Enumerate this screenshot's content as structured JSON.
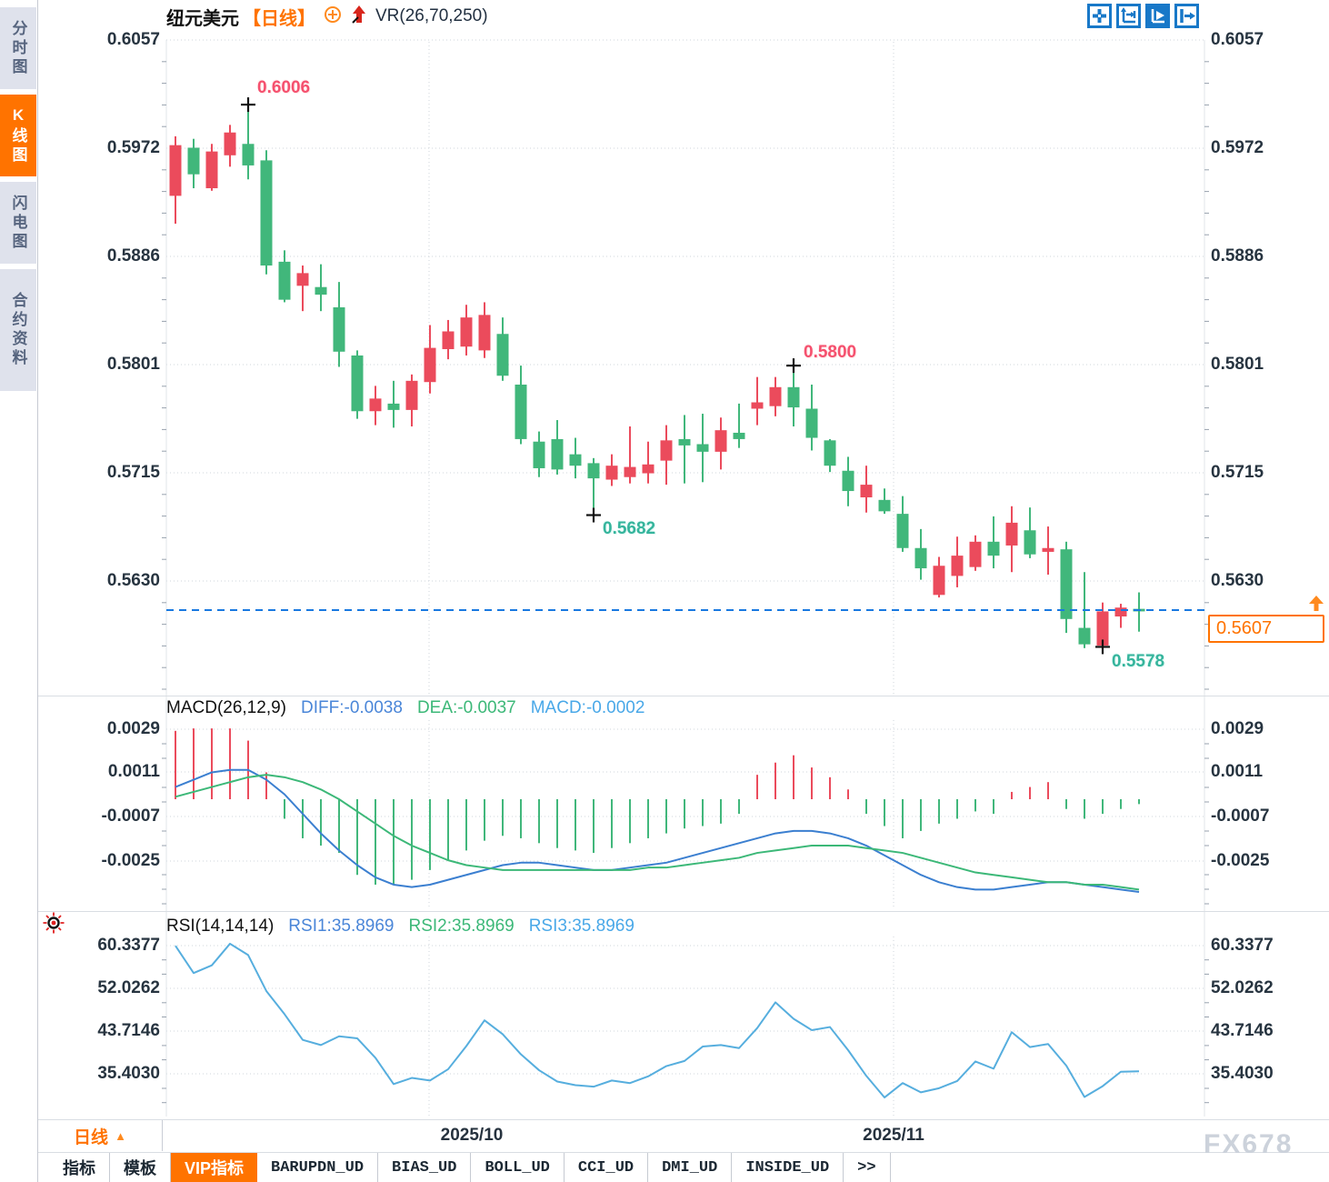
{
  "colors": {
    "up": "#eb4b5c",
    "down": "#41b77b",
    "accent_orange": "#ff7300",
    "diff_blue": "#3b7fd0",
    "dea_green": "#3cb878",
    "rsi_blue": "#56aede",
    "price_line_blue": "#1879e0",
    "grid": "#cfd4db",
    "tick": "#97a1ad",
    "annotation_red": "#f5506e",
    "annotation_teal": "#35b49c",
    "icon_blue": "#1878c8"
  },
  "sidebar": {
    "items": [
      {
        "label": "分时图",
        "active": false
      },
      {
        "label": "K线图",
        "active": true
      },
      {
        "label": "闪电图",
        "active": false
      },
      {
        "label": "合约资料",
        "active": false
      }
    ]
  },
  "header": {
    "symbol": "纽元美元",
    "period_tag": "【日线】",
    "indicator_label": "VR(26,70,250)"
  },
  "main_chart": {
    "annotations": {
      "high": "0.6006",
      "low": "0.5682",
      "swing_high": "0.5800",
      "recent_low": "0.5578"
    },
    "current_price_label": "0.5607"
  },
  "macd": {
    "title": "MACD(26,12,9)",
    "diff_label": "DIFF:-0.0038",
    "dea_label": "DEA:-0.0037",
    "macd_label": "MACD:-0.0002",
    "axis_labels": [
      "0.0029",
      "0.0011",
      "-0.0007",
      "-0.0025"
    ]
  },
  "rsi": {
    "title": "RSI(14,14,14)",
    "rsi1_label": "RSI1:35.8969",
    "rsi2_label": "RSI2:35.8969",
    "rsi3_label": "RSI3:35.8969",
    "axis_labels": [
      "60.3377",
      "52.0262",
      "43.7146",
      "35.4030"
    ]
  },
  "x_axis": {
    "dates": [
      "2025/10",
      "2025/11"
    ],
    "period": "日线",
    "period_arrow": "▲"
  },
  "bottom_tabs": [
    {
      "label": "指标",
      "active": false
    },
    {
      "label": "模板",
      "active": false
    },
    {
      "label": "VIP指标",
      "active": true
    },
    {
      "label": "BARUPDN_UD",
      "active": false
    },
    {
      "label": "BIAS_UD",
      "active": false
    },
    {
      "label": "BOLL_UD",
      "active": false
    },
    {
      "label": "CCI_UD",
      "active": false
    },
    {
      "label": "DMI_UD",
      "active": false
    },
    {
      "label": "INSIDE_UD",
      "active": false
    },
    {
      "label": ">>",
      "active": false
    }
  ],
  "watermark": "FX678",
  "chart_data": {
    "type": "candlestick",
    "symbol": "纽元美元",
    "period": "日线",
    "y_axis_labels": [
      "0.6057",
      "0.5972",
      "0.5886",
      "0.5801",
      "0.5715",
      "0.5630"
    ],
    "y_axis_values": [
      0.6057,
      0.5972,
      0.5886,
      0.5801,
      0.5715,
      0.563
    ],
    "current_price": 0.5607,
    "marked_high": 0.6006,
    "marked_low": 0.5682,
    "swing_high": 0.58,
    "recent_low": 0.5578,
    "x_gridline_dates": [
      "2025/10",
      "2025/11"
    ],
    "candles_ohlc": [
      [
        0.5934,
        0.5981,
        0.5912,
        0.5974
      ],
      [
        0.5972,
        0.5979,
        0.594,
        0.5951
      ],
      [
        0.594,
        0.5975,
        0.5938,
        0.5969
      ],
      [
        0.5966,
        0.599,
        0.5957,
        0.5984
      ],
      [
        0.5975,
        0.6006,
        0.5947,
        0.5958
      ],
      [
        0.5962,
        0.597,
        0.5872,
        0.5879
      ],
      [
        0.5882,
        0.5891,
        0.585,
        0.5852
      ],
      [
        0.5863,
        0.5879,
        0.5843,
        0.5873
      ],
      [
        0.5862,
        0.588,
        0.5843,
        0.5856
      ],
      [
        0.5846,
        0.5866,
        0.5799,
        0.5811
      ],
      [
        0.5808,
        0.5812,
        0.5758,
        0.5764
      ],
      [
        0.5764,
        0.5784,
        0.5753,
        0.5774
      ],
      [
        0.577,
        0.5788,
        0.5751,
        0.5765
      ],
      [
        0.5765,
        0.5793,
        0.5752,
        0.5788
      ],
      [
        0.5787,
        0.5832,
        0.5778,
        0.5814
      ],
      [
        0.5813,
        0.5836,
        0.5805,
        0.5827
      ],
      [
        0.5815,
        0.5848,
        0.5808,
        0.5838
      ],
      [
        0.5812,
        0.585,
        0.5806,
        0.584
      ],
      [
        0.5825,
        0.5838,
        0.5788,
        0.5792
      ],
      [
        0.5785,
        0.58,
        0.5738,
        0.5742
      ],
      [
        0.574,
        0.5748,
        0.5712,
        0.5719
      ],
      [
        0.5742,
        0.5757,
        0.5714,
        0.5718
      ],
      [
        0.573,
        0.5743,
        0.5711,
        0.5721
      ],
      [
        0.5723,
        0.5727,
        0.5682,
        0.5711
      ],
      [
        0.571,
        0.573,
        0.5705,
        0.5721
      ],
      [
        0.5712,
        0.5752,
        0.5707,
        0.572
      ],
      [
        0.5715,
        0.574,
        0.5707,
        0.5722
      ],
      [
        0.5725,
        0.5753,
        0.5706,
        0.5741
      ],
      [
        0.5742,
        0.5761,
        0.5707,
        0.5737
      ],
      [
        0.5738,
        0.5762,
        0.5708,
        0.5732
      ],
      [
        0.5732,
        0.5759,
        0.5718,
        0.5749
      ],
      [
        0.5747,
        0.577,
        0.5735,
        0.5742
      ],
      [
        0.5766,
        0.5791,
        0.5753,
        0.5771
      ],
      [
        0.5768,
        0.5791,
        0.576,
        0.5783
      ],
      [
        0.5783,
        0.58,
        0.5752,
        0.5767
      ],
      [
        0.5766,
        0.5785,
        0.5733,
        0.5743
      ],
      [
        0.5741,
        0.5742,
        0.5716,
        0.5721
      ],
      [
        0.5717,
        0.5728,
        0.5689,
        0.5701
      ],
      [
        0.5696,
        0.5721,
        0.5684,
        0.5706
      ],
      [
        0.5694,
        0.5703,
        0.5683,
        0.5685
      ],
      [
        0.5683,
        0.5697,
        0.5653,
        0.5656
      ],
      [
        0.5656,
        0.5671,
        0.5631,
        0.564
      ],
      [
        0.5619,
        0.5649,
        0.5617,
        0.5642
      ],
      [
        0.5634,
        0.5665,
        0.5625,
        0.565
      ],
      [
        0.5641,
        0.5666,
        0.5638,
        0.5661
      ],
      [
        0.5661,
        0.5681,
        0.564,
        0.565
      ],
      [
        0.5658,
        0.5689,
        0.5637,
        0.5676
      ],
      [
        0.567,
        0.5688,
        0.5648,
        0.5651
      ],
      [
        0.5653,
        0.5673,
        0.5635,
        0.5656
      ],
      [
        0.5655,
        0.5661,
        0.5589,
        0.56
      ],
      [
        0.5593,
        0.5637,
        0.5577,
        0.558
      ],
      [
        0.5579,
        0.5613,
        0.5578,
        0.5606
      ],
      [
        0.5602,
        0.5612,
        0.5593,
        0.5609
      ],
      [
        0.5608,
        0.5621,
        0.559,
        0.5606
      ]
    ],
    "macd": {
      "axis_values": [
        0.0029,
        0.0011,
        -0.0007,
        -0.0025
      ],
      "last": {
        "diff": -0.0038,
        "dea": -0.0037,
        "macd": -0.0002
      },
      "histogram_e4": [
        28,
        29,
        29,
        29,
        24,
        11,
        -8,
        -16,
        -19,
        -22,
        -31,
        -35,
        -35,
        -33,
        -29,
        -25,
        -21,
        -17,
        -15,
        -16,
        -18,
        -20,
        -21,
        -22,
        -20,
        -18,
        -16,
        -14,
        -12,
        -11,
        -10,
        -6,
        10,
        15,
        18,
        13,
        9,
        4,
        -6,
        -11,
        -16,
        -13,
        -10,
        -8,
        -5,
        -6,
        3,
        5,
        7,
        -4,
        -8,
        -6,
        -4,
        -2
      ],
      "diff_e4": [
        5,
        8,
        11,
        12,
        12,
        8,
        2,
        -6,
        -14,
        -21,
        -27,
        -32,
        -35,
        -36,
        -35,
        -33,
        -31,
        -29,
        -27,
        -26,
        -26,
        -27,
        -28,
        -29,
        -29,
        -28,
        -27,
        -26,
        -24,
        -22,
        -20,
        -18,
        -16,
        -14,
        -13,
        -13,
        -14,
        -16,
        -19,
        -23,
        -27,
        -31,
        -34,
        -36,
        -37,
        -37,
        -36,
        -35,
        -34,
        -34,
        -35,
        -36,
        -37,
        -38
      ],
      "dea_e4": [
        1,
        3,
        5,
        7,
        9,
        10,
        9,
        7,
        4,
        0,
        -5,
        -10,
        -15,
        -19,
        -22,
        -25,
        -27,
        -28,
        -29,
        -29,
        -29,
        -29,
        -29,
        -29,
        -29,
        -29,
        -28,
        -28,
        -27,
        -26,
        -25,
        -24,
        -22,
        -21,
        -20,
        -19,
        -19,
        -19,
        -20,
        -21,
        -22,
        -24,
        -26,
        -28,
        -30,
        -31,
        -32,
        -33,
        -34,
        -34,
        -35,
        -35,
        -36,
        -37
      ]
    },
    "rsi": {
      "axis_values": [
        60.3377,
        52.0262,
        43.7146,
        35.403
      ],
      "last": 35.8969,
      "values": [
        60.3,
        55.0,
        56.5,
        60.7,
        58.5,
        51.5,
        47.0,
        42.0,
        41.0,
        42.7,
        42.3,
        38.5,
        33.4,
        34.6,
        34.1,
        36.3,
        40.8,
        45.8,
        43.1,
        39.2,
        36.1,
        33.9,
        33.2,
        32.9,
        34.1,
        33.6,
        34.9,
        36.9,
        37.9,
        40.7,
        41.0,
        40.4,
        44.3,
        49.3,
        46.1,
        43.9,
        44.5,
        40.0,
        35.0,
        30.8,
        33.6,
        31.8,
        32.6,
        34.0,
        37.8,
        36.4,
        43.5,
        40.6,
        41.2,
        37.0,
        30.9,
        33.0,
        35.8,
        35.9
      ]
    }
  }
}
